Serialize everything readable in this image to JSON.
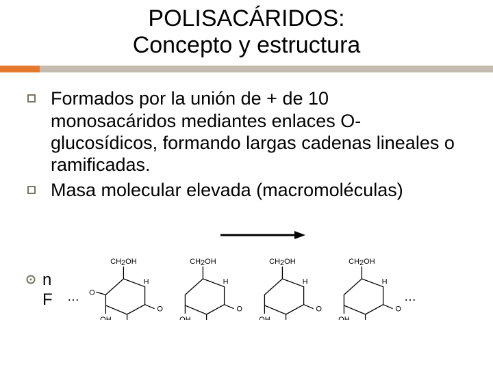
{
  "title": {
    "line1": "POLISACÁRIDOS:",
    "line2": "Concepto y estructura"
  },
  "bullets": [
    "Formados por la unión de + de 10 monosacáridos mediantes enlaces O-glucosídicos, formando largas cadenas lineales o ramificadas.",
    "Masa molecular elevada (macromoléculas)"
  ],
  "sub_visible_chars": {
    "line1": "n",
    "line2": "F"
  },
  "colors": {
    "divider": "#c4bbb1",
    "accent": "#e5792e",
    "bullet_border": "#7a7265",
    "text": "#000000",
    "background": "#ffffff"
  },
  "typography": {
    "title_fontsize": 34,
    "body_fontsize": 27,
    "sub_fontsize": 24
  },
  "chem_structure": {
    "type": "infographic",
    "repeat_units": 4,
    "unit_top_label": "CH₂OH",
    "unit_bottom_labels": [
      "OH",
      "OH"
    ],
    "unit_right_label": "H",
    "linker": "O",
    "stroke_color": "#000000",
    "stroke_width": 1.3,
    "font_size": 11,
    "unit_width": 118,
    "unit_height": 90
  },
  "arrow": {
    "length": 120,
    "stroke": "#000000",
    "stroke_width": 3
  }
}
